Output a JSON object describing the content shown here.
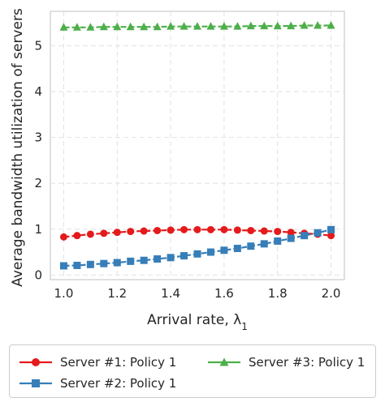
{
  "chart_data": {
    "type": "line",
    "xlabel": "Arrival rate, λ",
    "xlabel_subscript": "1",
    "ylabel": "Average bandwidth utilization of servers",
    "xlim": [
      0.95,
      2.05
    ],
    "ylim": [
      -0.1,
      5.75
    ],
    "xticks": [
      "1.0",
      "1.2",
      "1.4",
      "1.6",
      "1.8",
      "2.0"
    ],
    "yticks": [
      "0",
      "1",
      "2",
      "3",
      "4",
      "5"
    ],
    "grid": true,
    "legend_position": "below",
    "x": [
      1.0,
      1.05,
      1.1,
      1.15,
      1.2,
      1.25,
      1.3,
      1.35,
      1.4,
      1.45,
      1.5,
      1.55,
      1.6,
      1.65,
      1.7,
      1.75,
      1.8,
      1.85,
      1.9,
      1.95,
      2.0
    ],
    "series": [
      {
        "name": "Server #1: Policy 1",
        "color": "#e41a1c",
        "marker": "circle",
        "values": [
          0.83,
          0.86,
          0.89,
          0.91,
          0.93,
          0.95,
          0.96,
          0.97,
          0.98,
          0.99,
          0.99,
          0.99,
          0.99,
          0.98,
          0.97,
          0.96,
          0.95,
          0.93,
          0.91,
          0.89,
          0.86
        ]
      },
      {
        "name": "Server #2: Policy 1",
        "color": "#377eb8",
        "marker": "square",
        "values": [
          0.2,
          0.21,
          0.23,
          0.25,
          0.27,
          0.3,
          0.32,
          0.35,
          0.38,
          0.42,
          0.46,
          0.5,
          0.54,
          0.58,
          0.63,
          0.68,
          0.74,
          0.8,
          0.86,
          0.92,
          0.99
        ]
      },
      {
        "name": "Server #3: Policy 1",
        "color": "#4daf4a",
        "marker": "triangle",
        "values": [
          5.4,
          5.4,
          5.4,
          5.41,
          5.41,
          5.41,
          5.41,
          5.41,
          5.42,
          5.42,
          5.42,
          5.42,
          5.42,
          5.42,
          5.43,
          5.43,
          5.43,
          5.43,
          5.44,
          5.44,
          5.44
        ]
      }
    ]
  }
}
